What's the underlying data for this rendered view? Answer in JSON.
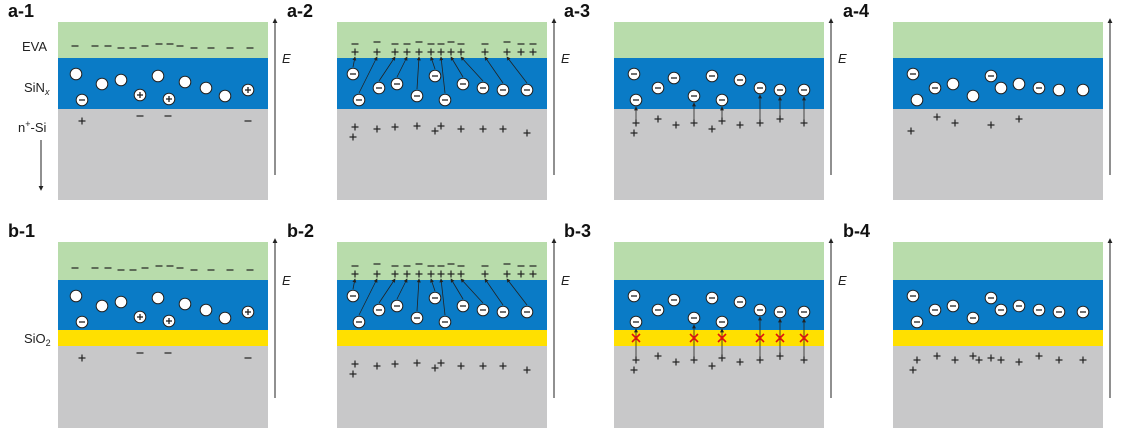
{
  "panels": [
    {
      "label": "a-1",
      "field": "E"
    },
    {
      "label": "a-2",
      "field": "E"
    },
    {
      "label": "a-3",
      "field": "E"
    },
    {
      "label": "a-4"
    },
    {
      "label": "b-1",
      "field": "E"
    },
    {
      "label": "b-2",
      "field": "E"
    },
    {
      "label": "b-3",
      "field": "E"
    },
    {
      "label": "b-4"
    }
  ],
  "layers": {
    "eva": "EVA",
    "sinx": "SiN",
    "sinx_sub": "x",
    "nsi_n": "n",
    "nsi_sup": "+",
    "nsi_rest": "-Si",
    "sio2": "SiO",
    "sio2_sub": "2"
  }
}
